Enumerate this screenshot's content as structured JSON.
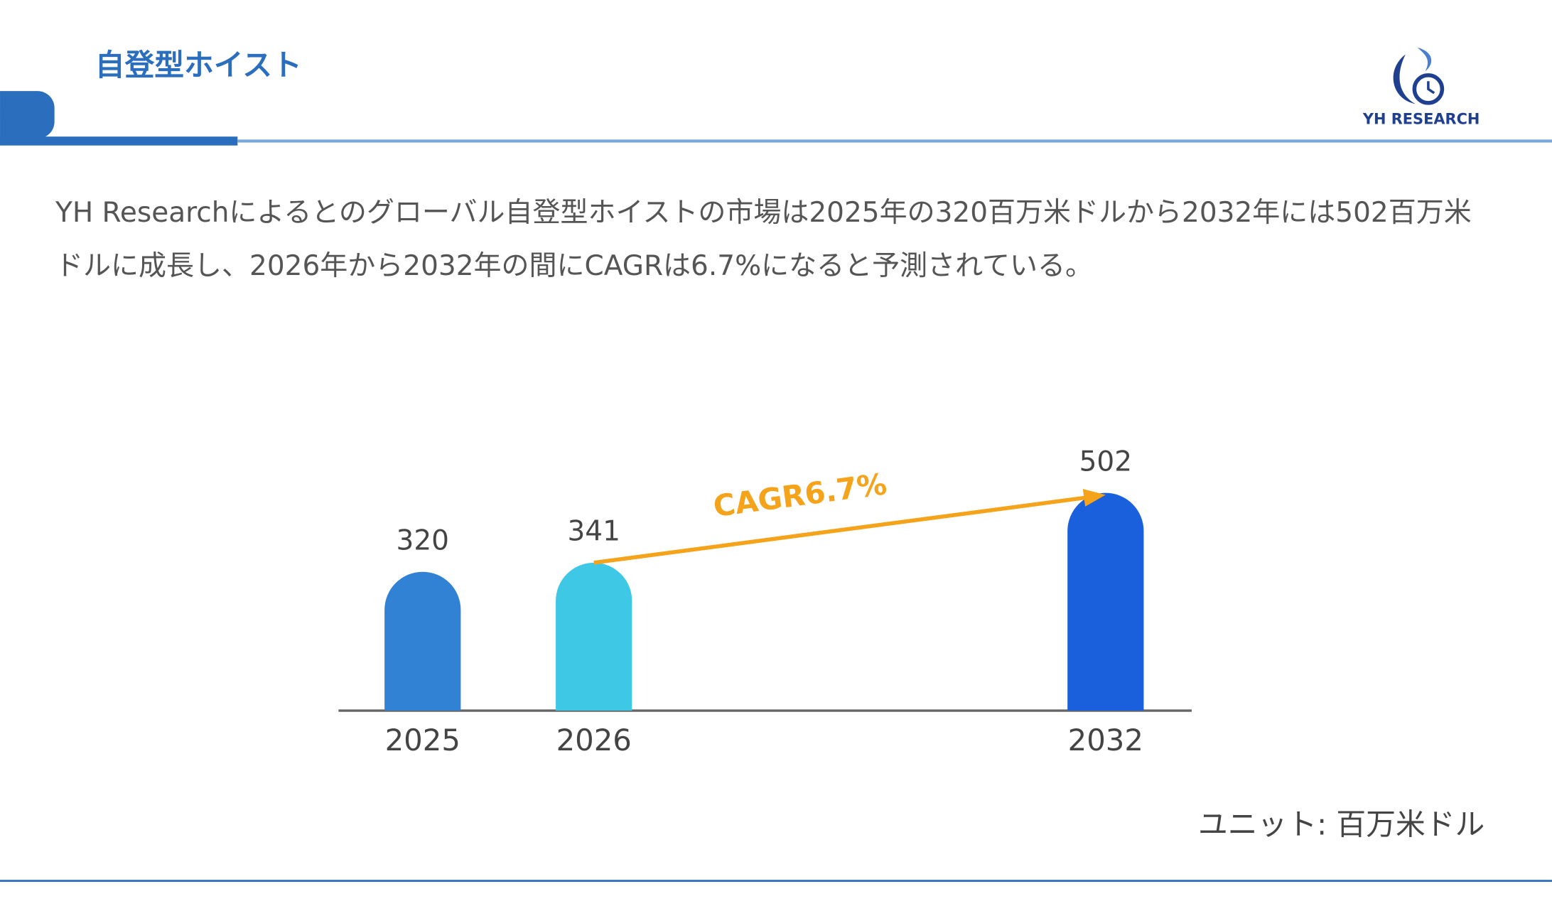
{
  "header": {
    "title": "自登型ホイスト",
    "logo": "YH RESEARCH"
  },
  "description": "YH Researchによるとのグローバル自登型ホイストの市場は2025年の320百万米ドルから2032年には502百万米ドルに成長し、2026年から2032年の間にCAGRは6.7%になると予測されている。",
  "chart_data": {
    "type": "bar",
    "categories": [
      "2025",
      "2026",
      "2032"
    ],
    "values": [
      320,
      341,
      502
    ],
    "colors": [
      "#3182d4",
      "#3ec8e6",
      "#1a5fdc"
    ],
    "annotation": "CAGR6.7%",
    "annotation_color": "#f5a31a"
  },
  "unit_note": "ユニット: 百万米ドル"
}
